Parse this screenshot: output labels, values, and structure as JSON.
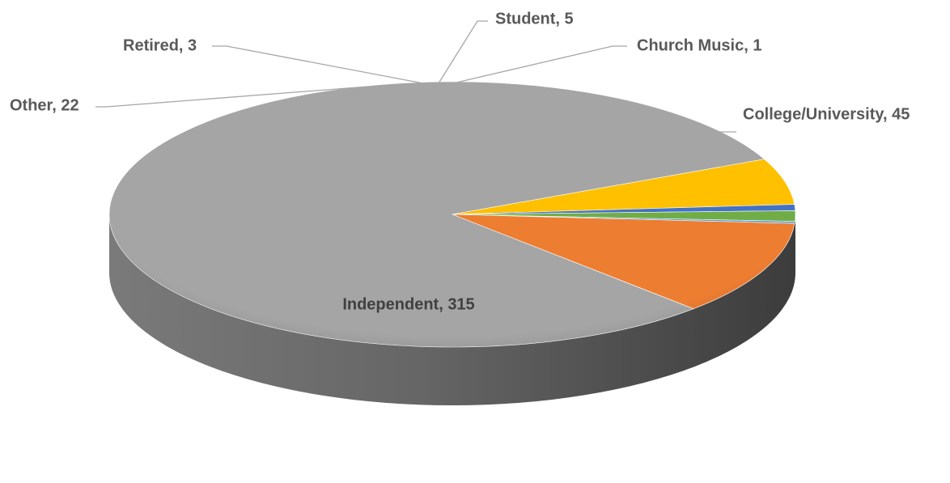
{
  "chart_data": {
    "type": "pie",
    "style": "3d",
    "categories": [
      "Church Music",
      "College/University",
      "Independent",
      "Other",
      "Retired",
      "Student"
    ],
    "values": [
      1,
      45,
      315,
      22,
      3,
      5
    ],
    "colors": [
      "#5b9bd5",
      "#ed7d31",
      "#a5a5a5",
      "#ffc000",
      "#4472c4",
      "#70ad47"
    ],
    "labels": [
      "Church Music, 1",
      "College/University, 45",
      "Independent, 315",
      "Other, 22",
      "Retired, 3",
      "Student, 5"
    ],
    "legend": "none"
  }
}
